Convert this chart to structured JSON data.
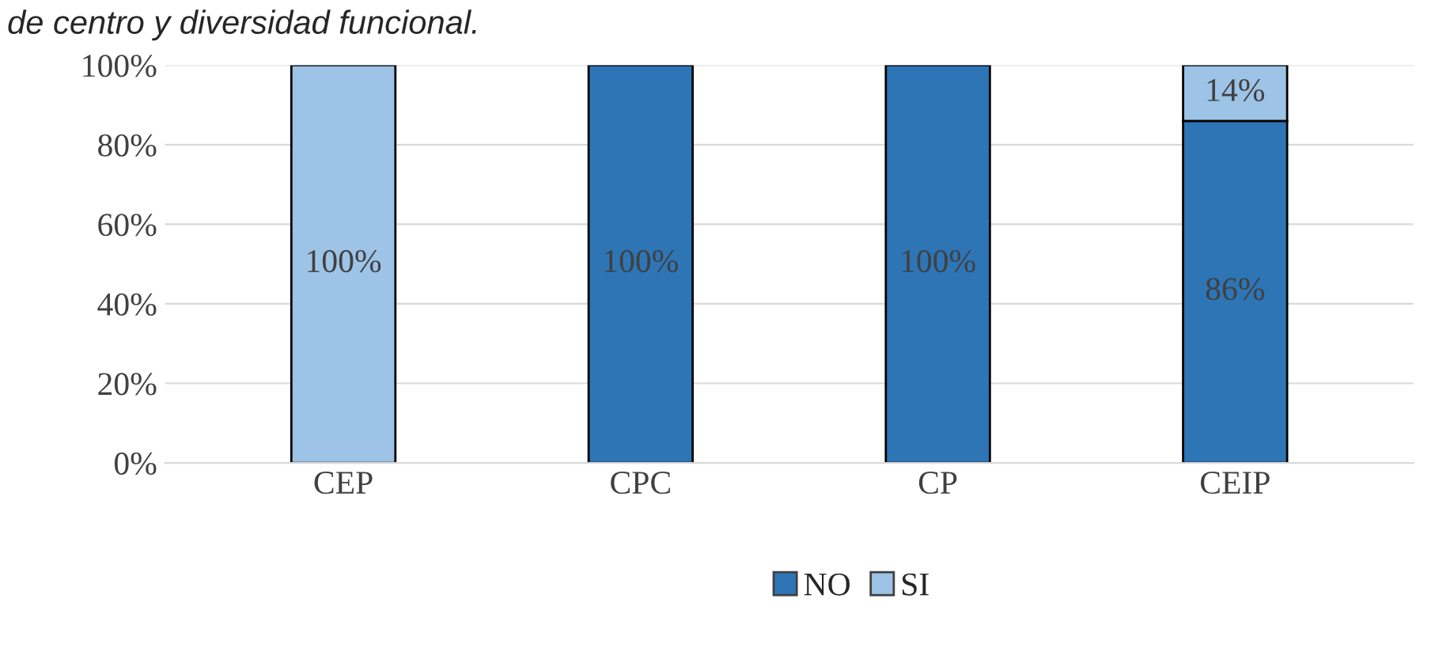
{
  "chart_data": {
    "type": "bar",
    "title": "de centro y diversidad funcional.",
    "stacked": true,
    "categories": [
      "CEP",
      "CPC",
      "CP",
      "CEIP"
    ],
    "series": [
      {
        "name": "NO",
        "color": "#2e75b6",
        "values": [
          0,
          100,
          100,
          86
        ],
        "value_labels": [
          null,
          "100%",
          "100%",
          "86%"
        ]
      },
      {
        "name": "SI",
        "color": "#9dc3e6",
        "values": [
          100,
          0,
          0,
          14
        ],
        "value_labels": [
          "100%",
          null,
          null,
          "14%"
        ]
      }
    ],
    "ylim": [
      0,
      100
    ],
    "yticks": [
      {
        "value": 0,
        "label": "0%"
      },
      {
        "value": 20,
        "label": "20%"
      },
      {
        "value": 40,
        "label": "40%"
      },
      {
        "value": 60,
        "label": "60%"
      },
      {
        "value": 80,
        "label": "80%"
      },
      {
        "value": 100,
        "label": "100%"
      }
    ],
    "grid": "y",
    "legend": "bottom"
  }
}
